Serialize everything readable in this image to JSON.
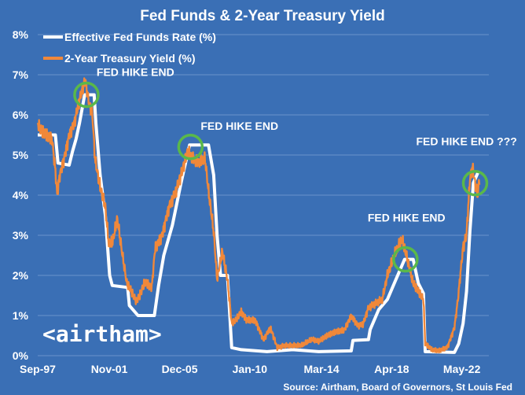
{
  "chart_data": {
    "type": "line",
    "title": "Fed Funds & 2-Year Treasury Yield",
    "source": "Source: Airtham, Board of Governors, St Louis Fed",
    "logo_text": "<airtham>",
    "ylim": [
      0,
      8
    ],
    "y_tick_labels": [
      "0%",
      "1%",
      "2%",
      "3%",
      "4%",
      "5%",
      "6%",
      "7%",
      "8%"
    ],
    "xlim": [
      1997.67,
      2023.9
    ],
    "x_tick_labels": [
      "Sep-97",
      "Nov-01",
      "Dec-05",
      "Jan-10",
      "Mar-14",
      "Apr-18",
      "May-22"
    ],
    "x_tick_positions": [
      1997.67,
      2001.83,
      2005.92,
      2010.0,
      2014.17,
      2018.25,
      2022.33
    ],
    "grid": true,
    "legend_position": "top-left",
    "colors": {
      "background": "#3a6fb5",
      "fed_funds": "#ffffff",
      "treasury_2y": "#f0883a",
      "circle": "#5ab84a",
      "grid": "#6a93cc"
    },
    "series": [
      {
        "name": "Effective Fed Funds Rate (%)",
        "points": [
          [
            1997.67,
            5.5
          ],
          [
            1998.7,
            5.5
          ],
          [
            1998.85,
            4.8
          ],
          [
            1999.5,
            4.75
          ],
          [
            1999.7,
            5.1
          ],
          [
            1999.9,
            5.4
          ],
          [
            2000.1,
            5.8
          ],
          [
            2000.4,
            6.5
          ],
          [
            2000.95,
            6.5
          ],
          [
            2001.05,
            5.8
          ],
          [
            2001.3,
            4.5
          ],
          [
            2001.6,
            3.5
          ],
          [
            2001.85,
            2.0
          ],
          [
            2002.0,
            1.75
          ],
          [
            2002.9,
            1.7
          ],
          [
            2003.0,
            1.25
          ],
          [
            2003.5,
            1.0
          ],
          [
            2004.45,
            1.0
          ],
          [
            2004.7,
            1.75
          ],
          [
            2005.0,
            2.5
          ],
          [
            2005.5,
            3.25
          ],
          [
            2006.0,
            4.3
          ],
          [
            2006.5,
            5.25
          ],
          [
            2007.6,
            5.25
          ],
          [
            2007.9,
            4.5
          ],
          [
            2008.1,
            3.0
          ],
          [
            2008.3,
            2.0
          ],
          [
            2008.7,
            2.0
          ],
          [
            2008.95,
            0.2
          ],
          [
            2009.5,
            0.15
          ],
          [
            2011.0,
            0.1
          ],
          [
            2012.5,
            0.15
          ],
          [
            2014.0,
            0.1
          ],
          [
            2015.9,
            0.12
          ],
          [
            2016.0,
            0.38
          ],
          [
            2016.9,
            0.4
          ],
          [
            2017.0,
            0.65
          ],
          [
            2017.5,
            1.15
          ],
          [
            2018.0,
            1.4
          ],
          [
            2018.5,
            1.9
          ],
          [
            2019.0,
            2.4
          ],
          [
            2019.5,
            2.4
          ],
          [
            2019.8,
            1.8
          ],
          [
            2020.1,
            1.55
          ],
          [
            2020.2,
            0.1
          ],
          [
            2021.9,
            0.08
          ],
          [
            2022.15,
            0.3
          ],
          [
            2022.4,
            0.8
          ],
          [
            2022.6,
            1.6
          ],
          [
            2022.8,
            3.1
          ],
          [
            2023.0,
            4.3
          ],
          [
            2023.3,
            4.6
          ]
        ]
      },
      {
        "name": "2-Year Treasury Yield (%)",
        "points": [
          [
            1997.67,
            5.8
          ],
          [
            1997.9,
            5.6
          ],
          [
            1998.2,
            5.5
          ],
          [
            1998.5,
            5.4
          ],
          [
            1998.7,
            4.6
          ],
          [
            1998.8,
            4.0
          ],
          [
            1998.95,
            4.5
          ],
          [
            1999.2,
            4.9
          ],
          [
            1999.5,
            5.5
          ],
          [
            1999.8,
            5.8
          ],
          [
            2000.0,
            6.2
          ],
          [
            2000.3,
            6.7
          ],
          [
            2000.45,
            6.85
          ],
          [
            2000.6,
            6.4
          ],
          [
            2000.85,
            6.0
          ],
          [
            2001.0,
            4.9
          ],
          [
            2001.3,
            4.2
          ],
          [
            2001.6,
            3.7
          ],
          [
            2001.8,
            2.8
          ],
          [
            2002.0,
            2.8
          ],
          [
            2002.3,
            3.4
          ],
          [
            2002.6,
            2.5
          ],
          [
            2002.85,
            1.8
          ],
          [
            2003.0,
            1.7
          ],
          [
            2003.4,
            1.35
          ],
          [
            2003.6,
            1.5
          ],
          [
            2003.9,
            1.85
          ],
          [
            2004.3,
            1.7
          ],
          [
            2004.5,
            2.7
          ],
          [
            2004.9,
            3.0
          ],
          [
            2005.3,
            3.7
          ],
          [
            2005.7,
            4.1
          ],
          [
            2006.0,
            4.5
          ],
          [
            2006.4,
            5.1
          ],
          [
            2006.7,
            4.9
          ],
          [
            2007.0,
            4.8
          ],
          [
            2007.4,
            4.9
          ],
          [
            2007.6,
            4.1
          ],
          [
            2007.9,
            3.1
          ],
          [
            2008.1,
            1.9
          ],
          [
            2008.4,
            2.6
          ],
          [
            2008.7,
            1.9
          ],
          [
            2008.95,
            0.8
          ],
          [
            2009.2,
            0.9
          ],
          [
            2009.5,
            1.1
          ],
          [
            2009.8,
            0.9
          ],
          [
            2010.3,
            0.9
          ],
          [
            2010.8,
            0.4
          ],
          [
            2011.2,
            0.7
          ],
          [
            2011.6,
            0.2
          ],
          [
            2012.0,
            0.25
          ],
          [
            2012.6,
            0.25
          ],
          [
            2013.0,
            0.25
          ],
          [
            2013.6,
            0.4
          ],
          [
            2014.0,
            0.35
          ],
          [
            2014.5,
            0.5
          ],
          [
            2015.0,
            0.6
          ],
          [
            2015.5,
            0.65
          ],
          [
            2015.9,
            1.0
          ],
          [
            2016.3,
            0.75
          ],
          [
            2016.6,
            0.8
          ],
          [
            2016.9,
            1.2
          ],
          [
            2017.3,
            1.3
          ],
          [
            2017.7,
            1.4
          ],
          [
            2018.0,
            2.0
          ],
          [
            2018.4,
            2.5
          ],
          [
            2018.85,
            2.9
          ],
          [
            2019.1,
            2.5
          ],
          [
            2019.5,
            1.8
          ],
          [
            2019.8,
            1.6
          ],
          [
            2020.1,
            1.4
          ],
          [
            2020.2,
            0.3
          ],
          [
            2020.6,
            0.15
          ],
          [
            2021.0,
            0.13
          ],
          [
            2021.5,
            0.22
          ],
          [
            2021.9,
            0.7
          ],
          [
            2022.1,
            1.4
          ],
          [
            2022.4,
            2.7
          ],
          [
            2022.6,
            3.0
          ],
          [
            2022.8,
            4.4
          ],
          [
            2022.95,
            4.7
          ],
          [
            2023.1,
            4.3
          ],
          [
            2023.25,
            4.0
          ],
          [
            2023.35,
            4.4
          ]
        ]
      }
    ],
    "annotations": [
      {
        "text": "FED HIKE END",
        "x": 2000.5,
        "y": 6.5,
        "circle": true
      },
      {
        "text": "FED HIKE END",
        "x": 2006.55,
        "y": 5.2,
        "circle": true
      },
      {
        "text": "FED HIKE END",
        "x": 2019.05,
        "y": 2.4,
        "circle": true
      },
      {
        "text": "FED HIKE END ???",
        "x": 2023.1,
        "y": 4.3,
        "circle": true
      }
    ]
  }
}
